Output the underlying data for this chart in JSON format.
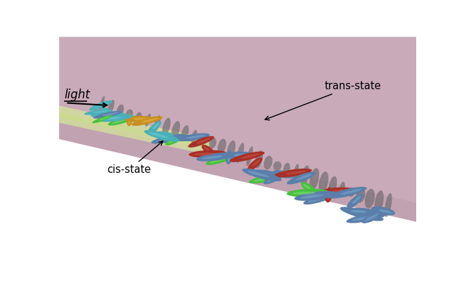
{
  "fig_width": 6.6,
  "fig_height": 4.37,
  "dpi": 100,
  "bg_color": "#ffffff",
  "surface_color": "#c8aab8",
  "white_bg": "#ffffff",
  "beam_color": "#d4e89a",
  "beam_color2": "#c8e080",
  "blue_lc": "#5b7faa",
  "blue_lc_hi": "#7aaace",
  "blue_lc_dark": "#3a5a80",
  "teal_lc": "#4ab0b8",
  "teal_lc_hi": "#70ccd4",
  "green_dye": "#48c040",
  "green_dye_hi": "#80e070",
  "orange_dye": "#c89020",
  "orange_dye_hi": "#e8b848",
  "red_dye": "#a83028",
  "red_dye_hi": "#c85848",
  "shadow_col": "#555555",
  "cis_label": "cis-state",
  "trans_label": "trans-state",
  "light_label": "light"
}
